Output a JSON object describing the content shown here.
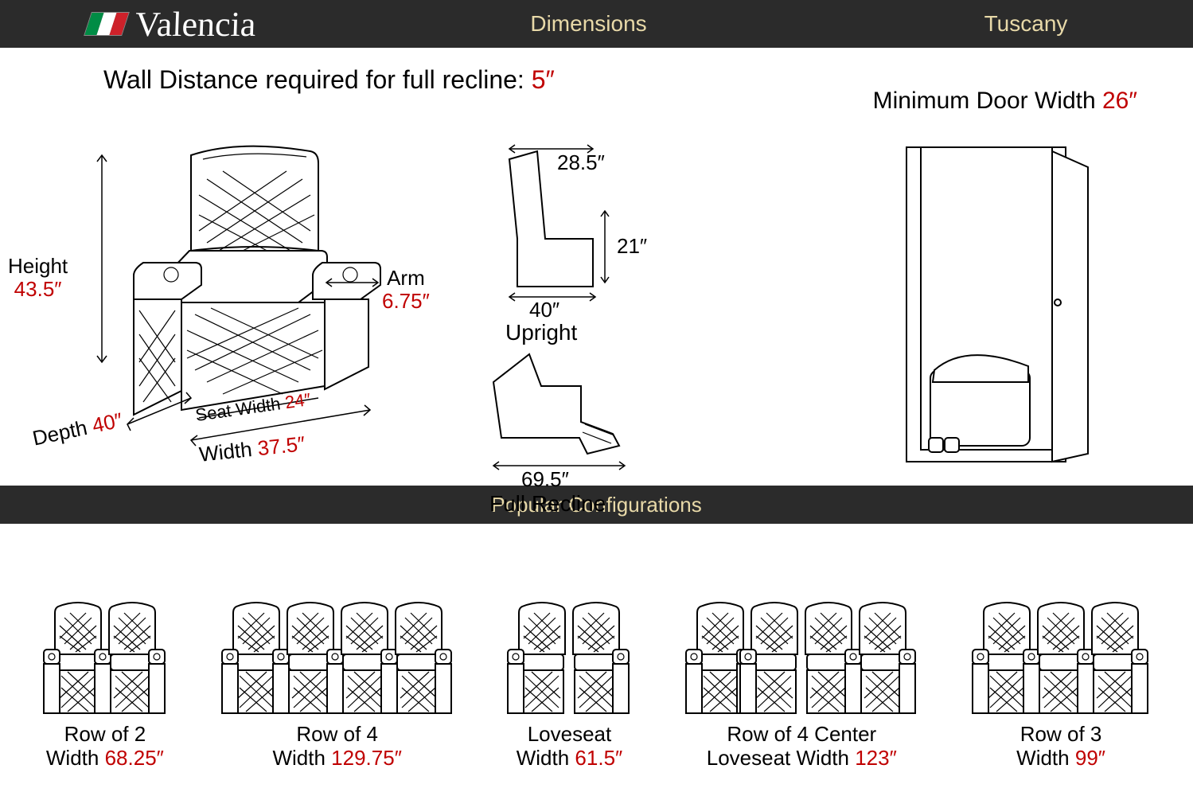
{
  "header": {
    "brand": "Valencia",
    "flag_colors": [
      "#008c45",
      "#ffffff",
      "#cd212a"
    ],
    "center": "Dimensions",
    "right": "Tuscany",
    "bg": "#2b2b2b",
    "fg": "#e8d9a8"
  },
  "subheader": "Popular Configurations",
  "colors": {
    "red": "#c00000",
    "text": "#000000",
    "bg": "#ffffff"
  },
  "wall_distance": {
    "label": "Wall Distance required for full recline: ",
    "value": "5″"
  },
  "door": {
    "label_prefix": "Minimum Door Width ",
    "value": "26″"
  },
  "chair_dims": {
    "height": {
      "label": "Height",
      "value": "43.5″"
    },
    "arm": {
      "label": "Arm",
      "value": "6.75″"
    },
    "depth": {
      "label": "Depth",
      "value": "40″"
    },
    "seat_width": {
      "label": "Seat Width",
      "value": "24″"
    },
    "width": {
      "label": "Width",
      "value": "37.5″"
    }
  },
  "upright": {
    "top": "28.5″",
    "side": "21″",
    "bottom": "40″",
    "caption": "Upright"
  },
  "recline": {
    "bottom": "69.5″",
    "caption": "Full Recline"
  },
  "configs": [
    {
      "name": "Row of 2",
      "width_label": "Width",
      "value": "68.25″",
      "seats": 2,
      "loveseat_center": false
    },
    {
      "name": "Row of 4",
      "width_label": "Width",
      "value": "129.75″",
      "seats": 4,
      "loveseat_center": false
    },
    {
      "name": "Loveseat",
      "width_label": "Width",
      "value": "61.5″",
      "seats": 2,
      "loveseat_center": true
    },
    {
      "name": "Row of 4 Center",
      "width_label": "Loveseat Width",
      "value": "123″",
      "seats": 4,
      "loveseat_center": true
    },
    {
      "name": "Row of 3",
      "width_label": "Width",
      "value": "99″",
      "seats": 3,
      "loveseat_center": false
    }
  ],
  "typography": {
    "header_fontsize": 28,
    "body_fontsize": 26,
    "title_fontsize": 32
  }
}
